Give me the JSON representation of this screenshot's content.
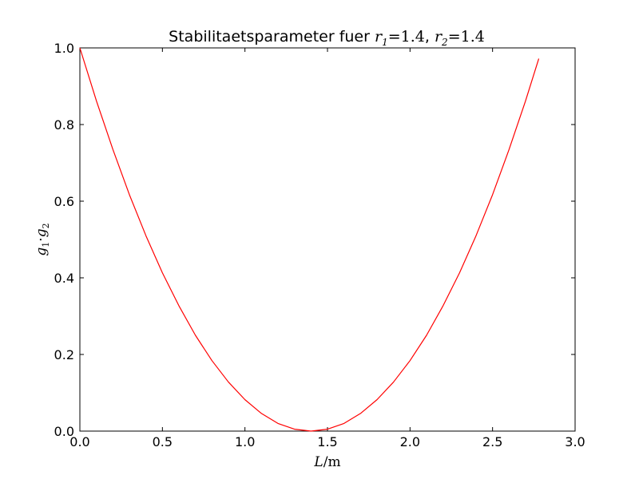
{
  "chart_data": {
    "type": "line",
    "title": {
      "text_part": "Stabilitaetsparameter fuer",
      "r1_label": "r",
      "r1_sub": "1",
      "r1_value": "=1.4",
      "separator": ",",
      "r2_label": "r",
      "r2_sub": "2",
      "r2_value": "=1.4"
    },
    "xlabel": {
      "var": "L",
      "unit": "/m"
    },
    "ylabel": {
      "g1": "g",
      "g1_sub": "1",
      "dot": "·",
      "g2": "g",
      "g2_sub": "2"
    },
    "xlim": [
      0,
      3
    ],
    "ylim": [
      0,
      1
    ],
    "xticks": [
      0,
      0.5,
      1,
      1.5,
      2,
      2.5,
      3
    ],
    "xtick_labels": [
      "0.0",
      "0.5",
      "1.0",
      "1.5",
      "2.0",
      "2.5",
      "3.0"
    ],
    "yticks": [
      0,
      0.2,
      0.4,
      0.6,
      0.8,
      1
    ],
    "ytick_labels": [
      "0.0",
      "0.2",
      "0.4",
      "0.6",
      "0.8",
      "1.0"
    ],
    "grid": false,
    "series": [
      {
        "color": "#ff0000",
        "x": [
          0,
          0.1,
          0.2,
          0.3,
          0.4,
          0.5,
          0.6,
          0.7,
          0.8,
          0.9,
          1.0,
          1.1,
          1.2,
          1.3,
          1.4,
          1.5,
          1.6,
          1.7,
          1.8,
          1.9,
          2.0,
          2.1,
          2.2,
          2.3,
          2.4,
          2.5,
          2.6,
          2.7,
          2.78
        ],
        "y": [
          1.0,
          0.862,
          0.735,
          0.617,
          0.51,
          0.413,
          0.327,
          0.25,
          0.184,
          0.128,
          0.082,
          0.046,
          0.02,
          0.005,
          0.0,
          0.005,
          0.02,
          0.046,
          0.082,
          0.128,
          0.184,
          0.25,
          0.327,
          0.413,
          0.51,
          0.617,
          0.735,
          0.862,
          0.972
        ]
      }
    ]
  }
}
